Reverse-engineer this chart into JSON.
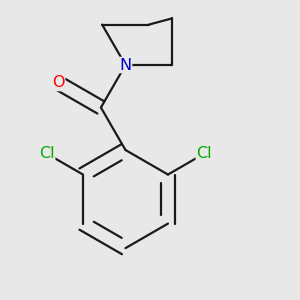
{
  "background_color": "#e8e8e8",
  "bond_color": "#1a1a1a",
  "oxygen_color": "#ff0000",
  "nitrogen_color": "#0000cc",
  "chlorine_color": "#00aa00",
  "line_width": 1.6,
  "dbo": 0.012,
  "font_size_atoms": 11.5,
  "figsize": [
    3.0,
    3.0
  ],
  "dpi": 100,
  "xlim": [
    -1.8,
    2.2
  ],
  "ylim": [
    -2.2,
    2.0
  ]
}
